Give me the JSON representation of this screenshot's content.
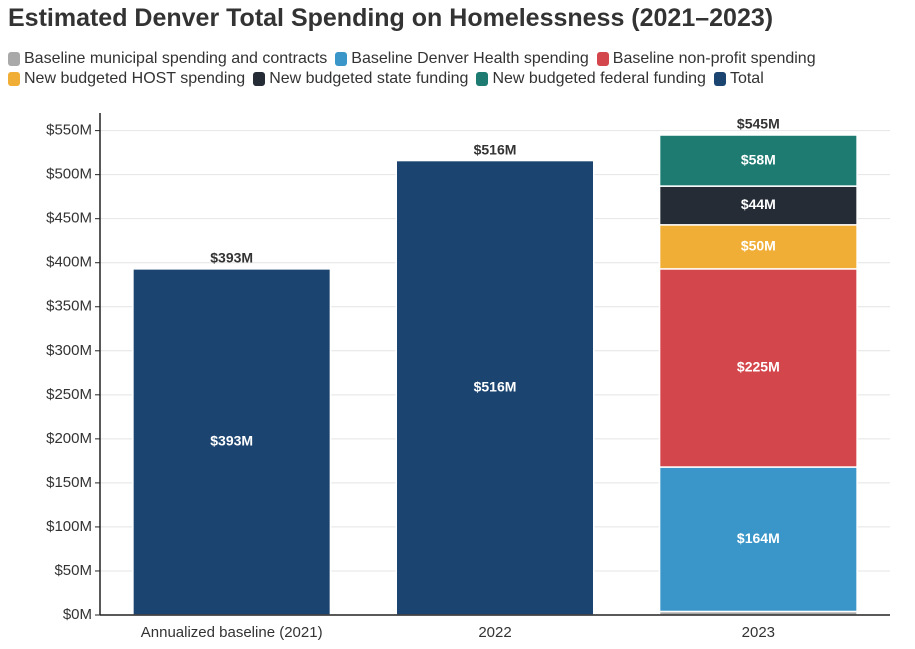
{
  "chart_data": {
    "type": "stacked-bar",
    "title": "Estimated Denver Total Spending on Homelessness (2021–2023)",
    "categories": [
      "Annualized baseline (2021)",
      "2022",
      "2023"
    ],
    "series": [
      {
        "name": "Baseline municipal spending and contracts",
        "color": "#a9a9a9",
        "values": [
          null,
          null,
          4
        ],
        "value_labels": [
          null,
          null,
          null
        ]
      },
      {
        "name": "Baseline Denver Health spending",
        "color": "#3a96c8",
        "values": [
          null,
          null,
          164
        ],
        "value_labels": [
          null,
          null,
          "$164M"
        ]
      },
      {
        "name": "Baseline non-profit spending",
        "color": "#d3464b",
        "values": [
          null,
          null,
          225
        ],
        "value_labels": [
          null,
          null,
          "$225M"
        ]
      },
      {
        "name": "New budgeted HOST spending",
        "color": "#f0ae36",
        "values": [
          null,
          null,
          50
        ],
        "value_labels": [
          null,
          null,
          "$50M"
        ]
      },
      {
        "name": "New budgeted state funding",
        "color": "#262c36",
        "values": [
          null,
          null,
          44
        ],
        "value_labels": [
          null,
          null,
          "$44M"
        ]
      },
      {
        "name": "New budgeted federal funding",
        "color": "#1e7b72",
        "values": [
          null,
          null,
          58
        ],
        "value_labels": [
          null,
          null,
          "$58M"
        ]
      },
      {
        "name": "Total",
        "color": "#1b4570",
        "values": [
          393,
          516,
          null
        ],
        "value_labels": [
          "$393M",
          "$516M",
          null
        ]
      }
    ],
    "stack_totals": {
      "values": [
        393,
        516,
        545
      ],
      "value_labels": [
        "$393M",
        "$516M",
        "$545M"
      ]
    },
    "ylim": [
      0,
      570
    ],
    "yticks": [
      {
        "value": 0,
        "label": "$0M"
      },
      {
        "value": 50,
        "label": "$50M"
      },
      {
        "value": 100,
        "label": "$100M"
      },
      {
        "value": 150,
        "label": "$150M"
      },
      {
        "value": 200,
        "label": "$200M"
      },
      {
        "value": 250,
        "label": "$250M"
      },
      {
        "value": 300,
        "label": "$300M"
      },
      {
        "value": 350,
        "label": "$350M"
      },
      {
        "value": 400,
        "label": "$400M"
      },
      {
        "value": 450,
        "label": "$450M"
      },
      {
        "value": 500,
        "label": "$500M"
      },
      {
        "value": 550,
        "label": "$550M"
      }
    ],
    "grid": true,
    "legend": "top"
  }
}
